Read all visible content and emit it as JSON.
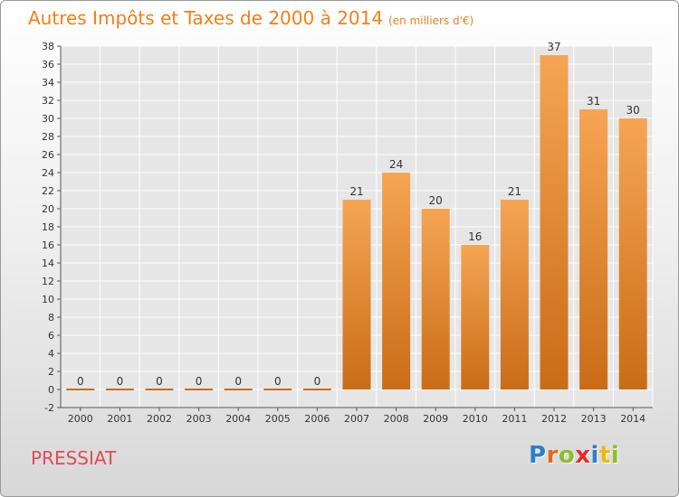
{
  "header": {
    "title": "Autres Impôts et Taxes de 2000 à 2014",
    "unit": "(en milliers d'€)"
  },
  "footer": {
    "commune": "PRESSIAT",
    "logo_letters": [
      {
        "char": "P",
        "color": "#2f7ec8"
      },
      {
        "char": "r",
        "color": "#e8651b"
      },
      {
        "char": "o",
        "color": "#8cbf26"
      },
      {
        "char": "x",
        "color": "#e82a2a"
      },
      {
        "char": "i",
        "color": "#2f7ec8"
      },
      {
        "char": "t",
        "color": "#f0b416"
      },
      {
        "char": "i",
        "color": "#8cbf26"
      }
    ]
  },
  "colors": {
    "bar_top": "#f6a554",
    "bar_bottom": "#c96c17",
    "title": "#f07f1a",
    "commune": "#e24a5a"
  },
  "chart_data": {
    "type": "bar",
    "categories": [
      "2000",
      "2001",
      "2002",
      "2003",
      "2004",
      "2005",
      "2006",
      "2007",
      "2008",
      "2009",
      "2010",
      "2011",
      "2012",
      "2013",
      "2014"
    ],
    "values": [
      0,
      0,
      0,
      0,
      0,
      0,
      0,
      21,
      24,
      20,
      16,
      21,
      37,
      31,
      30
    ],
    "data_labels": [
      "0",
      "0",
      "0",
      "0",
      "0",
      "0",
      "0",
      "21",
      "24",
      "20",
      "16",
      "21",
      "37",
      "31",
      "30"
    ],
    "ylim": [
      -2,
      38
    ],
    "yticks": [
      -2,
      0,
      2,
      4,
      6,
      8,
      10,
      12,
      14,
      16,
      18,
      20,
      22,
      24,
      26,
      28,
      30,
      32,
      34,
      36,
      38
    ],
    "grid": true
  }
}
